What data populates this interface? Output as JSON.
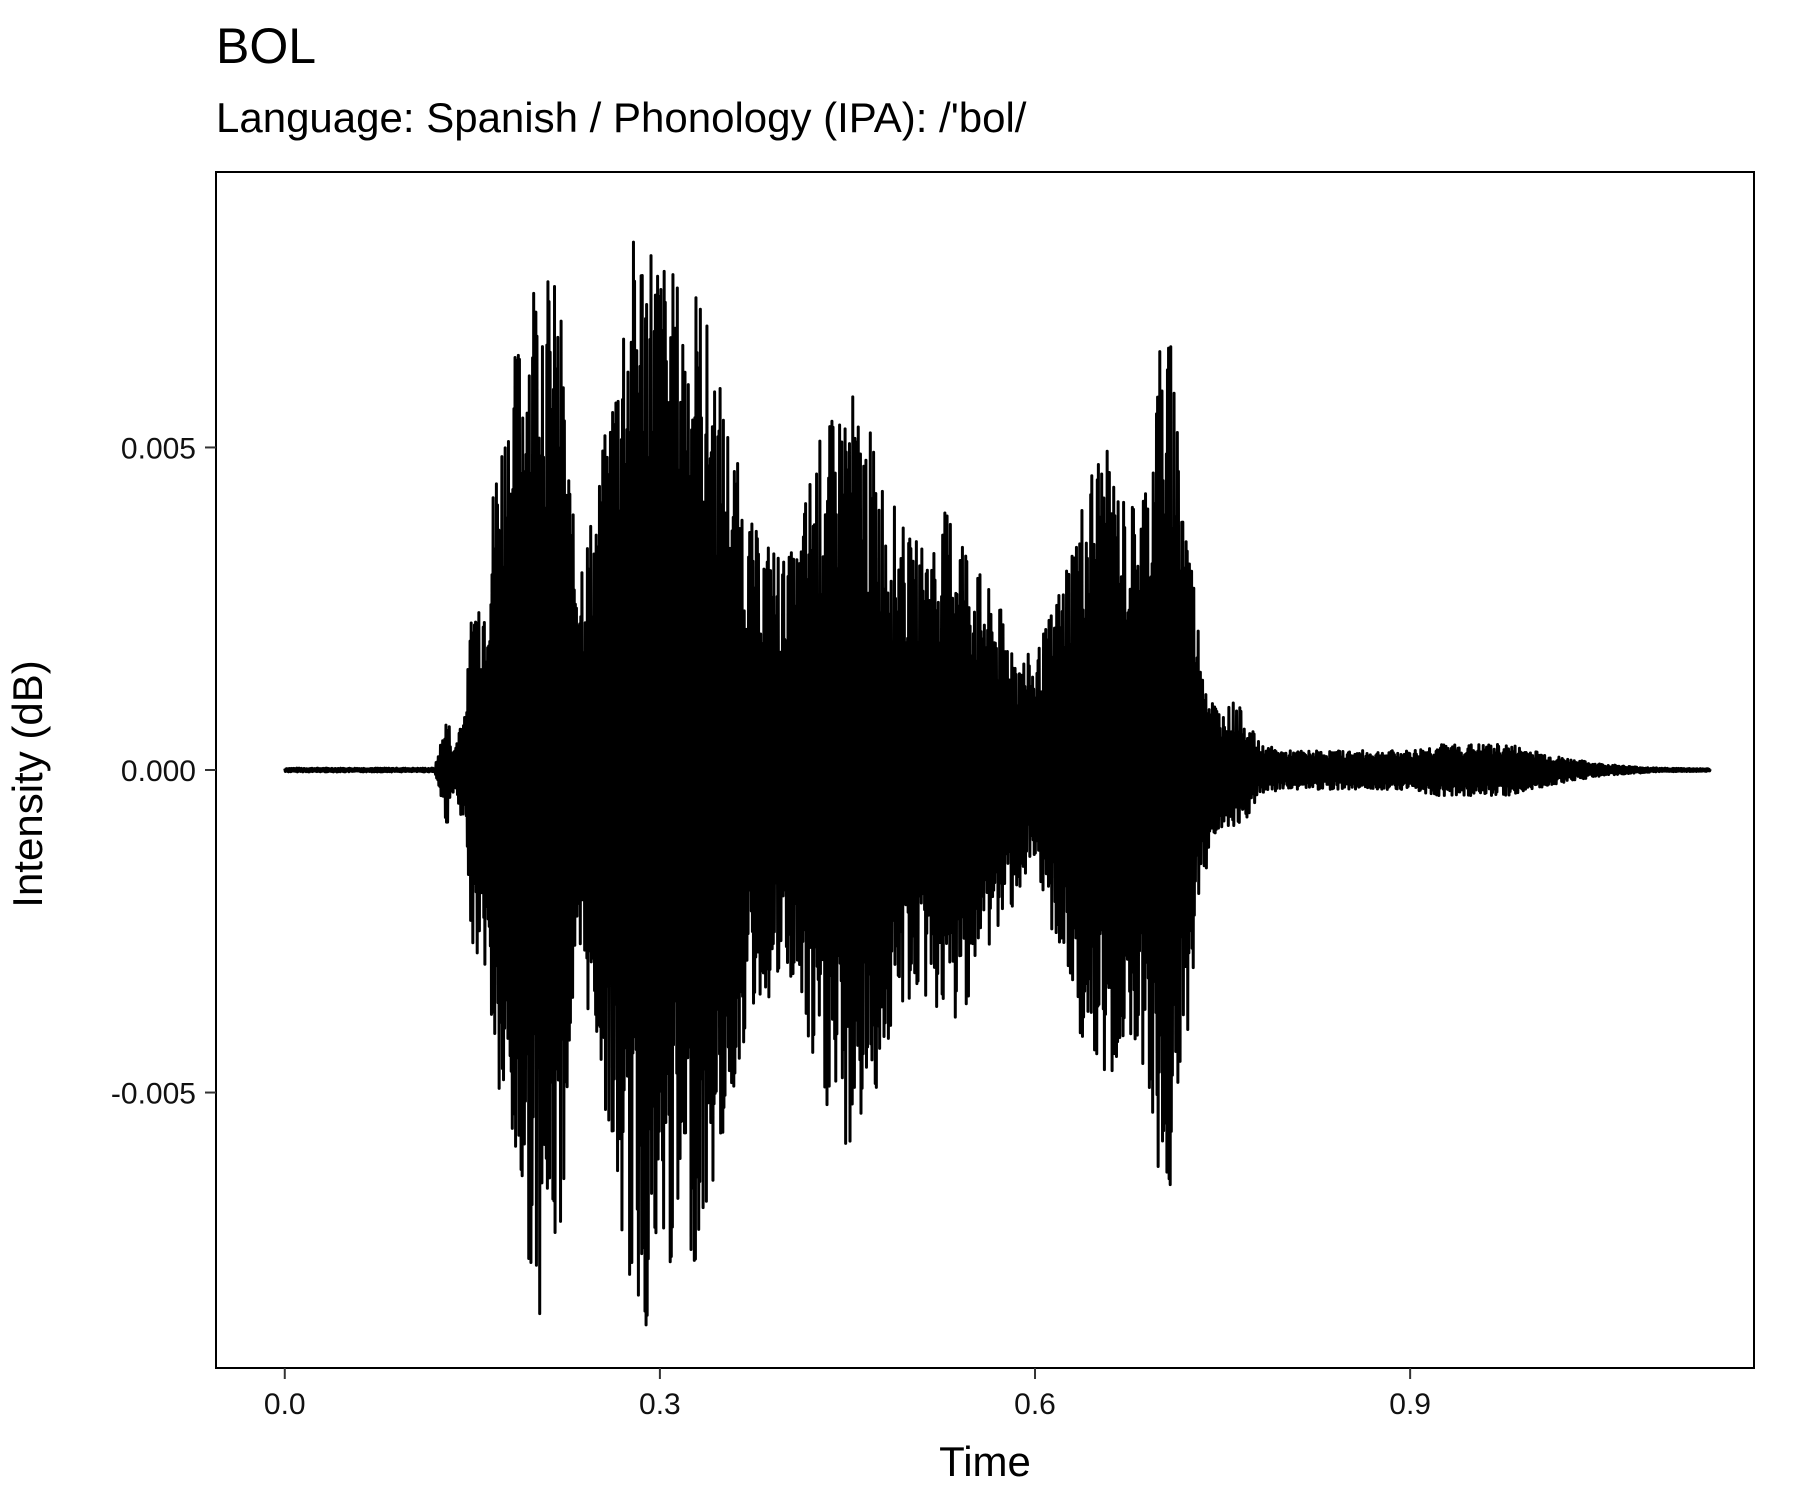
{
  "chart_data": {
    "type": "line",
    "title": "BOL",
    "subtitle": "Language: Spanish / Phonology (IPA): /'bol/",
    "xlabel": "Time",
    "ylabel": "Intensity (dB)",
    "xlim": [
      -0.055,
      1.175
    ],
    "ylim": [
      -0.00927,
      0.00927
    ],
    "x_ticks": [
      {
        "value": 0.0,
        "label": "0.0"
      },
      {
        "value": 0.3,
        "label": "0.3"
      },
      {
        "value": 0.6,
        "label": "0.6"
      },
      {
        "value": 0.9,
        "label": "0.9"
      }
    ],
    "y_ticks": [
      {
        "value": 0.005,
        "label": "0.005"
      },
      {
        "value": 0.0,
        "label": "0.000"
      },
      {
        "value": -0.005,
        "label": "-0.005"
      }
    ],
    "grid": false,
    "legend": "none",
    "series": [
      {
        "color": "#000000",
        "envelope_time": [
          0.0,
          0.12,
          0.13,
          0.135,
          0.14,
          0.145,
          0.15,
          0.16,
          0.17,
          0.18,
          0.19,
          0.2,
          0.205,
          0.21,
          0.22,
          0.23,
          0.24,
          0.25,
          0.26,
          0.27,
          0.28,
          0.29,
          0.3,
          0.31,
          0.32,
          0.33,
          0.34,
          0.35,
          0.36,
          0.37,
          0.38,
          0.39,
          0.4,
          0.41,
          0.42,
          0.43,
          0.44,
          0.45,
          0.46,
          0.47,
          0.48,
          0.49,
          0.5,
          0.51,
          0.52,
          0.53,
          0.54,
          0.55,
          0.56,
          0.57,
          0.58,
          0.59,
          0.6,
          0.61,
          0.62,
          0.63,
          0.64,
          0.65,
          0.66,
          0.67,
          0.68,
          0.69,
          0.7,
          0.71,
          0.72,
          0.73,
          0.74,
          0.75,
          0.76,
          0.78,
          0.8,
          0.82,
          0.85,
          0.88,
          0.9,
          0.92,
          0.94,
          0.96,
          0.98,
          1.0,
          1.02,
          1.05,
          1.08,
          1.1,
          1.14
        ],
        "envelope_amplitude": [
          3e-05,
          3e-05,
          0.0009,
          0.0003,
          0.0008,
          0.0011,
          0.0028,
          0.0031,
          0.0052,
          0.0061,
          0.0071,
          0.0082,
          0.0085,
          0.0078,
          0.0075,
          0.004,
          0.0036,
          0.0044,
          0.0058,
          0.0076,
          0.0084,
          0.0088,
          0.0082,
          0.0078,
          0.0075,
          0.0077,
          0.0068,
          0.0059,
          0.005,
          0.004,
          0.0036,
          0.0036,
          0.0033,
          0.0035,
          0.0047,
          0.0053,
          0.0055,
          0.0061,
          0.0056,
          0.0052,
          0.0045,
          0.004,
          0.0036,
          0.0036,
          0.0037,
          0.0041,
          0.004,
          0.0033,
          0.0029,
          0.0026,
          0.0022,
          0.0018,
          0.0018,
          0.0023,
          0.0029,
          0.0037,
          0.0044,
          0.0051,
          0.0049,
          0.0043,
          0.0042,
          0.0048,
          0.0068,
          0.0067,
          0.0045,
          0.0024,
          0.0012,
          0.0009,
          0.0011,
          0.0004,
          0.0003,
          0.0003,
          0.0003,
          0.0003,
          0.0003,
          0.0004,
          0.0004,
          0.0004,
          0.0004,
          0.0003,
          0.0002,
          0.0001,
          5e-05,
          3e-05,
          2e-05
        ]
      }
    ]
  }
}
